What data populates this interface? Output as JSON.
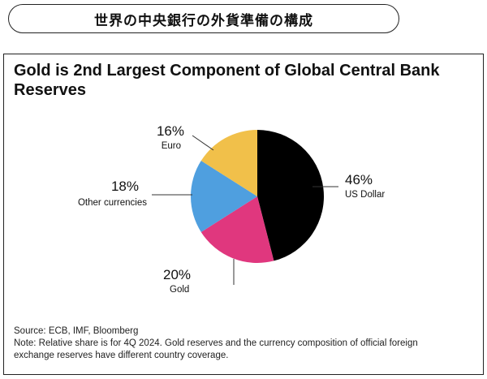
{
  "header": {
    "title": "世界の中央銀行の外貨準備の構成"
  },
  "chart_data": {
    "type": "pie",
    "title": "Gold is 2nd Largest Component of Global Central Bank Reserves",
    "title_lines": [
      "Gold is 2nd Largest Component of Global Central Bank",
      "Reserves"
    ],
    "slices": [
      {
        "label": "US Dollar",
        "value": 46,
        "value_label": "46%",
        "color": "#000000"
      },
      {
        "label": "Gold",
        "value": 20,
        "value_label": "20%",
        "color": "#e0377e"
      },
      {
        "label": "Other currencies",
        "value": 18,
        "value_label": "18%",
        "color": "#4f9fdf"
      },
      {
        "label": "Euro",
        "value": 16,
        "value_label": "16%",
        "color": "#f1c04a"
      }
    ],
    "start": "12 o'clock",
    "direction": "clockwise"
  },
  "footnote": {
    "source": "Source: ECB, IMF, Bloomberg",
    "note_line1": "Note: Relative share is for 4Q 2024. Gold reserves and the currency composition of official foreign",
    "note_line2": "exchange reserves have different country coverage."
  }
}
